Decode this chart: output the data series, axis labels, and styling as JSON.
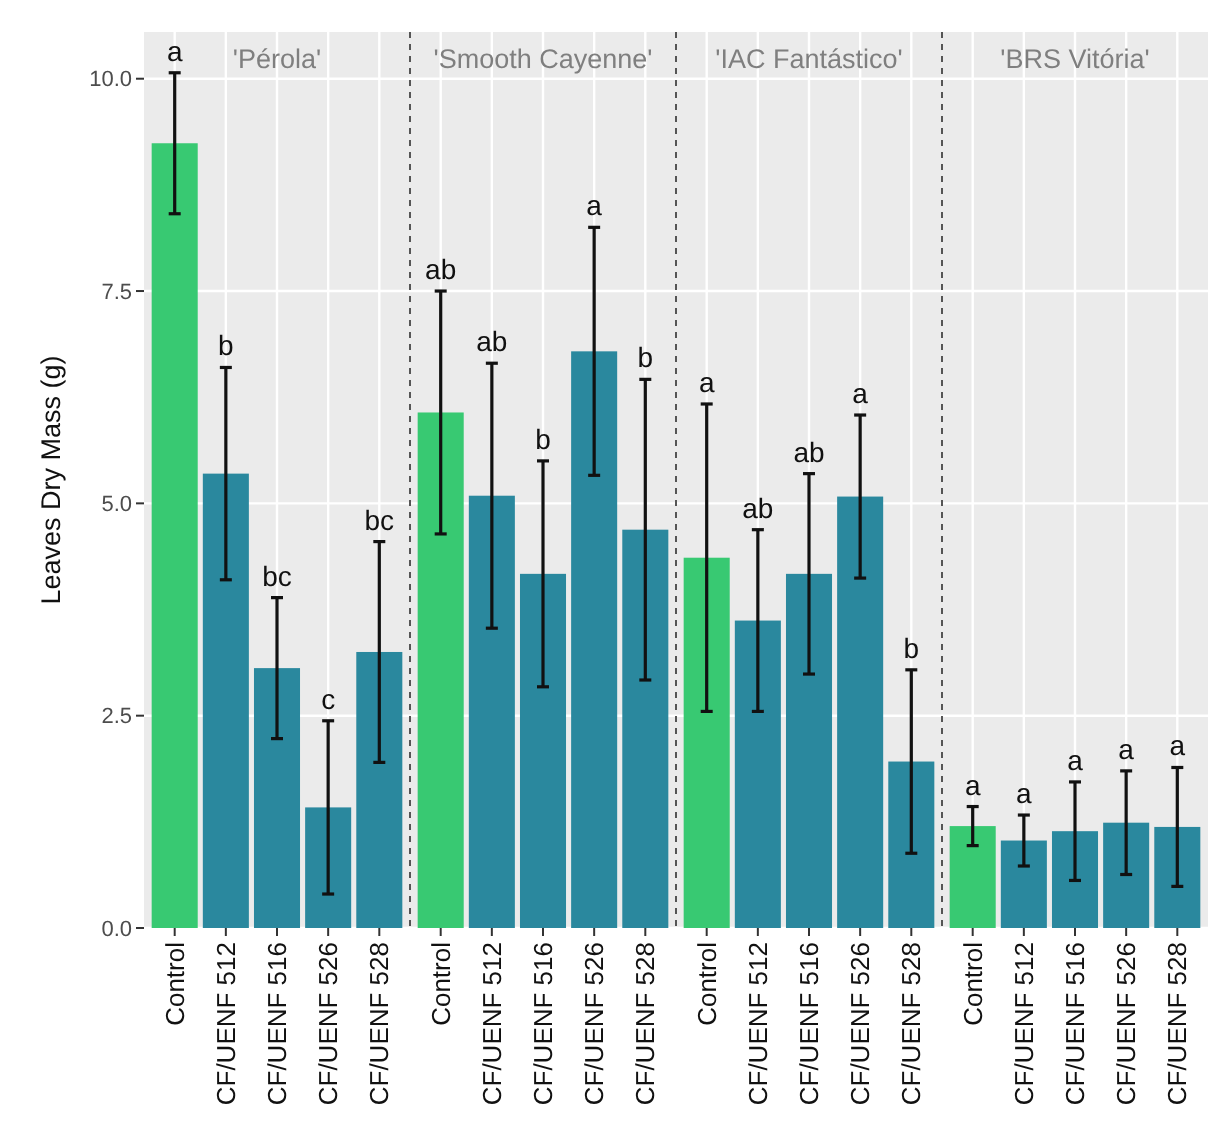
{
  "chart_data": [
    {
      "type": "bar",
      "title": "'Pérola'",
      "ylabel": "Leaves Dry Mass (g)",
      "categories": [
        "Control",
        "CF/UENF 512",
        "CF/UENF 516",
        "CF/UENF 526",
        "CF/UENF 528"
      ],
      "values": [
        9.24,
        5.35,
        3.06,
        1.42,
        3.25
      ],
      "colors": [
        "#38c972",
        "#2a889e",
        "#2a889e",
        "#2a889e",
        "#2a889e"
      ],
      "errors": [
        0.83,
        1.25,
        0.83,
        1.02,
        1.3
      ],
      "ylim": [
        0,
        10.55
      ],
      "yticks": [
        {
          "value": 0,
          "label": "0.0"
        },
        {
          "value": 2.5,
          "label": "2.5"
        },
        {
          "value": 5,
          "label": "5.0"
        },
        {
          "value": 7.5,
          "label": "7.5"
        },
        {
          "value": 10,
          "label": "10.0"
        }
      ],
      "grid": true,
      "annotations": [
        {
          "text": "a",
          "x": "Control",
          "y": 10.07
        },
        {
          "text": "b",
          "x": "CF/UENF 512",
          "y": 6.6
        },
        {
          "text": "bc",
          "x": "CF/UENF 516",
          "y": 3.89
        },
        {
          "text": "c",
          "x": "CF/UENF 526",
          "y": 2.44
        },
        {
          "text": "bc",
          "x": "CF/UENF 528",
          "y": 4.55
        }
      ]
    },
    {
      "type": "bar",
      "title": "'Smooth Cayenne'",
      "categories": [
        "Control",
        "CF/UENF 512",
        "CF/UENF 516",
        "CF/UENF 526",
        "CF/UENF 528"
      ],
      "values": [
        6.07,
        5.09,
        4.17,
        6.79,
        4.69
      ],
      "colors": [
        "#38c972",
        "#2a889e",
        "#2a889e",
        "#2a889e",
        "#2a889e"
      ],
      "errors": [
        1.43,
        1.56,
        1.33,
        1.46,
        1.77
      ],
      "ylim": [
        0,
        10.55
      ],
      "yticks": [
        0,
        2.5,
        5,
        7.5,
        10
      ],
      "grid": true,
      "tick_labels": "x",
      "annotations": [
        {
          "text": "ab",
          "x": "Control",
          "y": 7.5
        },
        {
          "text": "ab",
          "x": "CF/UENF 512",
          "y": 6.65
        },
        {
          "text": "b",
          "x": "CF/UENF 516",
          "y": 5.5
        },
        {
          "text": "a",
          "x": "CF/UENF 526",
          "y": 8.25
        },
        {
          "text": "b",
          "x": "CF/UENF 528",
          "y": 6.46
        }
      ]
    },
    {
      "type": "bar",
      "title": "'IAC Fantástico'",
      "categories": [
        "Control",
        "CF/UENF 512",
        "CF/UENF 516",
        "CF/UENF 526",
        "CF/UENF 528"
      ],
      "values": [
        4.36,
        3.62,
        4.17,
        5.08,
        1.96
      ],
      "colors": [
        "#38c972",
        "#2a889e",
        "#2a889e",
        "#2a889e",
        "#2a889e"
      ],
      "errors": [
        1.81,
        1.07,
        1.18,
        0.96,
        1.08
      ],
      "ylim": [
        0,
        10.55
      ],
      "yticks": [
        0,
        2.5,
        5,
        7.5,
        10
      ],
      "grid": true,
      "tick_labels": "x",
      "annotations": [
        {
          "text": "a",
          "x": "Control",
          "y": 6.17
        },
        {
          "text": "ab",
          "x": "CF/UENF 512",
          "y": 4.69
        },
        {
          "text": "ab",
          "x": "CF/UENF 516",
          "y": 5.35
        },
        {
          "text": "a",
          "x": "CF/UENF 526",
          "y": 6.04
        },
        {
          "text": "b",
          "x": "CF/UENF 528",
          "y": 3.04
        }
      ]
    },
    {
      "type": "bar",
      "title": "'BRS Vitória'",
      "categories": [
        "Control",
        "CF/UENF 512",
        "CF/UENF 516",
        "CF/UENF 526",
        "CF/UENF 528"
      ],
      "values": [
        1.2,
        1.03,
        1.14,
        1.24,
        1.19
      ],
      "colors": [
        "#38c972",
        "#2a889e",
        "#2a889e",
        "#2a889e",
        "#2a889e"
      ],
      "errors": [
        0.23,
        0.3,
        0.58,
        0.61,
        0.7
      ],
      "ylim": [
        0,
        10.55
      ],
      "yticks": [
        0,
        2.5,
        5,
        7.5,
        10
      ],
      "grid": true,
      "tick_labels": "x",
      "annotations": [
        {
          "text": "a",
          "x": "Control",
          "y": 1.43
        },
        {
          "text": "a",
          "x": "CF/UENF 512",
          "y": 1.33
        },
        {
          "text": "a",
          "x": "CF/UENF 516",
          "y": 1.72
        },
        {
          "text": "a",
          "x": "CF/UENF 526",
          "y": 1.85
        },
        {
          "text": "a",
          "x": "CF/UENF 528",
          "y": 1.89
        }
      ]
    }
  ]
}
